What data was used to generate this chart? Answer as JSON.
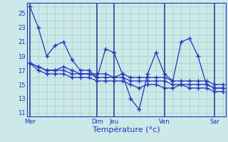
{
  "background_color": "#cce8e8",
  "grid_color": "#aacccc",
  "line_color": "#2233bb",
  "xlabel": "Température (°c)",
  "ylim": [
    10.5,
    26.5
  ],
  "yticks": [
    11,
    13,
    15,
    17,
    19,
    21,
    23,
    25
  ],
  "day_labels": [
    "Mer",
    "Dim",
    "Jeu",
    "Ven",
    "Sar"
  ],
  "day_x": [
    0,
    8,
    10,
    16,
    22
  ],
  "n_points": 24,
  "series_wavy": [
    26,
    23,
    19,
    20.5,
    21,
    18.5,
    17,
    17,
    16,
    20,
    19.5,
    16.5,
    13,
    11.5,
    16.5,
    19.5,
    16.5,
    15.5,
    21,
    21.5,
    19,
    15,
    14.5,
    14.5
  ],
  "series_flat1": [
    18,
    17.5,
    17,
    17,
    17,
    16.5,
    16.5,
    16.5,
    16,
    16,
    16,
    16,
    15.5,
    15.5,
    15.5,
    15.5,
    15.5,
    15,
    15,
    15,
    15,
    15,
    14.5,
    14.5
  ],
  "series_flat2": [
    18,
    17.5,
    17,
    17,
    17.5,
    17,
    16.5,
    16.5,
    16.5,
    16.5,
    16,
    16.5,
    16,
    16,
    16,
    16,
    16,
    15.5,
    15.5,
    15.5,
    15.5,
    15.5,
    15,
    15
  ],
  "series_flat3": [
    18,
    17,
    16.5,
    16.5,
    16.5,
    16,
    16,
    16,
    15.5,
    15.5,
    15.5,
    15.5,
    15,
    14.5,
    15,
    15,
    14.5,
    14.5,
    15,
    14.5,
    14.5,
    14.5,
    14,
    14
  ]
}
